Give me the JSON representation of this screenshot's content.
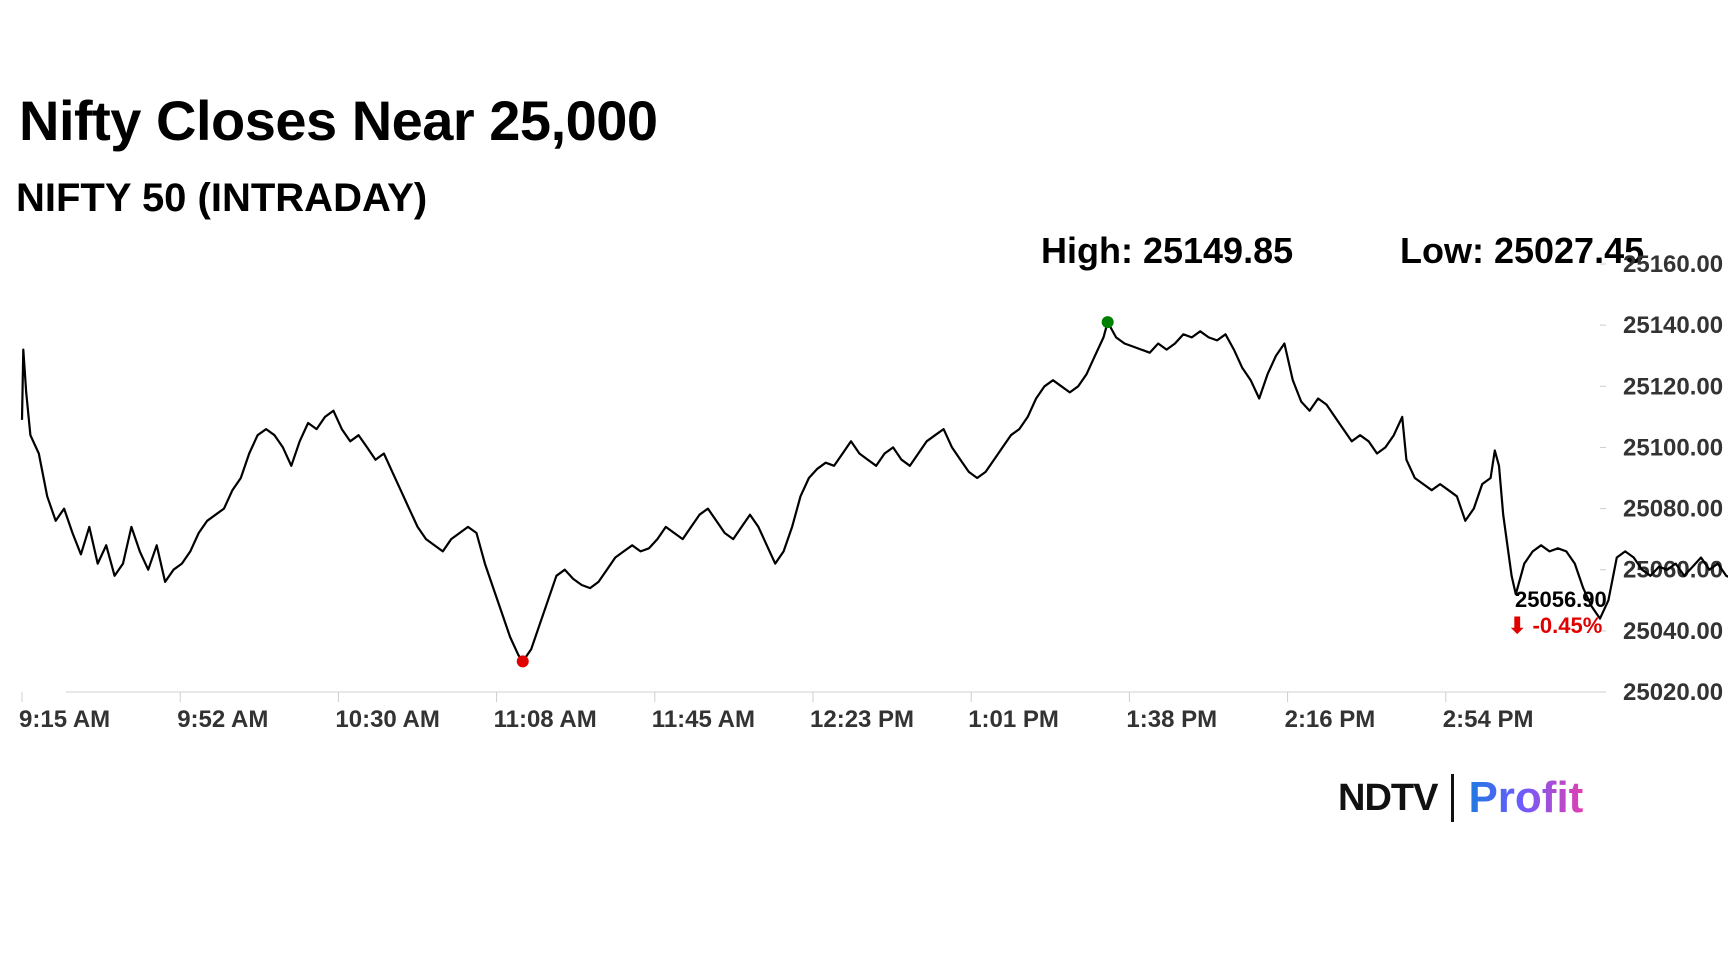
{
  "header": {
    "title": "Nifty Closes Near 25,000",
    "subtitle": "NIFTY 50 (INTRADAY)",
    "high_label": "High: 25149.85",
    "low_label": "Low: 25027.45"
  },
  "brand": {
    "left": "NDTV",
    "right": "Profit"
  },
  "colors": {
    "line": "#000000",
    "high_marker": "#008000",
    "low_marker": "#e00000",
    "last_marker": "#1a1aff",
    "change_text": "#e00000",
    "axis": "#e0e0e0"
  },
  "chart_data": {
    "type": "line",
    "x_ticks": [
      "9:15 AM",
      "9:52 AM",
      "10:30 AM",
      "11:08 AM",
      "11:45 AM",
      "12:23 PM",
      "1:01 PM",
      "1:38 PM",
      "2:16 PM",
      "2:54 PM"
    ],
    "y_ticks": [
      "25020.00",
      "25040.00",
      "25060.00",
      "25080.00",
      "25100.00",
      "25120.00",
      "25140.00",
      "25160.00"
    ],
    "ylim": [
      25020,
      25160
    ],
    "x_range_minutes": [
      0,
      375
    ],
    "series": [
      {
        "points": [
          [
            0,
            25109
          ],
          [
            0.3,
            25132
          ],
          [
            1,
            25118
          ],
          [
            2,
            25104
          ],
          [
            4,
            25098
          ],
          [
            6,
            25084
          ],
          [
            8,
            25076
          ],
          [
            10,
            25080
          ],
          [
            12,
            25072
          ],
          [
            14,
            25065
          ],
          [
            16,
            25074
          ],
          [
            18,
            25062
          ],
          [
            20,
            25068
          ],
          [
            22,
            25058
          ],
          [
            24,
            25062
          ],
          [
            26,
            25074
          ],
          [
            28,
            25066
          ],
          [
            30,
            25060
          ],
          [
            32,
            25068
          ],
          [
            34,
            25056
          ],
          [
            36,
            25060
          ],
          [
            38,
            25062
          ],
          [
            40,
            25066
          ],
          [
            42,
            25072
          ],
          [
            44,
            25076
          ],
          [
            46,
            25078
          ],
          [
            48,
            25080
          ],
          [
            50,
            25086
          ],
          [
            52,
            25090
          ],
          [
            54,
            25098
          ],
          [
            56,
            25104
          ],
          [
            58,
            25106
          ],
          [
            60,
            25104
          ],
          [
            62,
            25100
          ],
          [
            64,
            25094
          ],
          [
            66,
            25102
          ],
          [
            68,
            25108
          ],
          [
            70,
            25106
          ],
          [
            72,
            25110
          ],
          [
            74,
            25112
          ],
          [
            76,
            25106
          ],
          [
            78,
            25102
          ],
          [
            80,
            25104
          ],
          [
            82,
            25100
          ],
          [
            84,
            25096
          ],
          [
            86,
            25098
          ],
          [
            88,
            25092
          ],
          [
            90,
            25086
          ],
          [
            92,
            25080
          ],
          [
            94,
            25074
          ],
          [
            96,
            25070
          ],
          [
            98,
            25068
          ],
          [
            100,
            25066
          ],
          [
            102,
            25070
          ],
          [
            104,
            25072
          ],
          [
            106,
            25074
          ],
          [
            108,
            25072
          ],
          [
            110,
            25062
          ],
          [
            112,
            25054
          ],
          [
            114,
            25046
          ],
          [
            116,
            25038
          ],
          [
            118,
            25032
          ],
          [
            119,
            25030
          ],
          [
            121,
            25034
          ],
          [
            123,
            25042
          ],
          [
            125,
            25050
          ],
          [
            127,
            25058
          ],
          [
            129,
            25060
          ],
          [
            131,
            25057
          ],
          [
            133,
            25055
          ],
          [
            135,
            25054
          ],
          [
            137,
            25056
          ],
          [
            139,
            25060
          ],
          [
            141,
            25064
          ],
          [
            143,
            25066
          ],
          [
            145,
            25068
          ],
          [
            147,
            25066
          ],
          [
            149,
            25067
          ],
          [
            151,
            25070
          ],
          [
            153,
            25074
          ],
          [
            155,
            25072
          ],
          [
            157,
            25070
          ],
          [
            159,
            25074
          ],
          [
            161,
            25078
          ],
          [
            163,
            25080
          ],
          [
            165,
            25076
          ],
          [
            167,
            25072
          ],
          [
            169,
            25070
          ],
          [
            171,
            25074
          ],
          [
            173,
            25078
          ],
          [
            175,
            25074
          ],
          [
            177,
            25068
          ],
          [
            179,
            25062
          ],
          [
            181,
            25066
          ],
          [
            183,
            25074
          ],
          [
            185,
            25084
          ],
          [
            187,
            25090
          ],
          [
            189,
            25093
          ],
          [
            191,
            25095
          ],
          [
            193,
            25094
          ],
          [
            195,
            25098
          ],
          [
            197,
            25102
          ],
          [
            199,
            25098
          ],
          [
            201,
            25096
          ],
          [
            203,
            25094
          ],
          [
            205,
            25098
          ],
          [
            207,
            25100
          ],
          [
            209,
            25096
          ],
          [
            211,
            25094
          ],
          [
            213,
            25098
          ],
          [
            215,
            25102
          ],
          [
            217,
            25104
          ],
          [
            219,
            25106
          ],
          [
            221,
            25100
          ],
          [
            223,
            25096
          ],
          [
            225,
            25092
          ],
          [
            227,
            25090
          ],
          [
            229,
            25092
          ],
          [
            231,
            25096
          ],
          [
            233,
            25100
          ],
          [
            235,
            25104
          ],
          [
            237,
            25106
          ],
          [
            239,
            25110
          ],
          [
            241,
            25116
          ],
          [
            243,
            25120
          ],
          [
            245,
            25122
          ],
          [
            247,
            25120
          ],
          [
            249,
            25118
          ],
          [
            251,
            25120
          ],
          [
            253,
            25124
          ],
          [
            255,
            25130
          ],
          [
            257,
            25136
          ],
          [
            258,
            25141
          ],
          [
            260,
            25136
          ],
          [
            262,
            25134
          ],
          [
            264,
            25133
          ],
          [
            266,
            25132
          ],
          [
            268,
            25131
          ],
          [
            270,
            25134
          ],
          [
            272,
            25132
          ],
          [
            274,
            25134
          ],
          [
            276,
            25137
          ],
          [
            278,
            25136
          ],
          [
            280,
            25138
          ],
          [
            282,
            25136
          ],
          [
            284,
            25135
          ],
          [
            286,
            25137
          ],
          [
            288,
            25132
          ],
          [
            290,
            25126
          ],
          [
            292,
            25122
          ],
          [
            294,
            25116
          ],
          [
            296,
            25124
          ],
          [
            298,
            25130
          ],
          [
            300,
            25134
          ],
          [
            302,
            25122
          ],
          [
            304,
            25115
          ],
          [
            306,
            25112
          ],
          [
            308,
            25116
          ],
          [
            310,
            25114
          ],
          [
            312,
            25110
          ],
          [
            314,
            25106
          ],
          [
            316,
            25102
          ],
          [
            318,
            25104
          ],
          [
            320,
            25102
          ],
          [
            322,
            25098
          ],
          [
            324,
            25100
          ],
          [
            326,
            25104
          ],
          [
            328,
            25110
          ],
          [
            329,
            25096
          ],
          [
            331,
            25090
          ],
          [
            333,
            25088
          ],
          [
            335,
            25086
          ],
          [
            337,
            25088
          ],
          [
            339,
            25086
          ],
          [
            341,
            25084
          ],
          [
            343,
            25076
          ],
          [
            345,
            25080
          ],
          [
            347,
            25088
          ],
          [
            349,
            25090
          ],
          [
            350,
            25099
          ],
          [
            351,
            25094
          ],
          [
            352,
            25078
          ],
          [
            353,
            25068
          ],
          [
            354,
            25058
          ],
          [
            355,
            25052
          ],
          [
            357,
            25062
          ],
          [
            359,
            25066
          ],
          [
            361,
            25068
          ],
          [
            363,
            25066
          ],
          [
            365,
            25067
          ],
          [
            367,
            25066
          ],
          [
            369,
            25062
          ],
          [
            371,
            25054
          ],
          [
            373,
            25048
          ],
          [
            375,
            25044
          ],
          [
            377,
            25050
          ],
          [
            379,
            25064
          ],
          [
            381,
            25066
          ],
          [
            383,
            25064
          ],
          [
            385,
            25060
          ],
          [
            387,
            25058
          ],
          [
            389,
            25061
          ],
          [
            391,
            25060
          ],
          [
            393,
            25062
          ],
          [
            395,
            25058
          ],
          [
            397,
            25061
          ],
          [
            399,
            25064
          ],
          [
            401,
            25060
          ],
          [
            403,
            25062
          ],
          [
            405,
            25058
          ],
          [
            407,
            25056.9
          ]
        ]
      }
    ],
    "high_point": {
      "x": 258,
      "y": 25141
    },
    "low_point": {
      "x": 119,
      "y": 25030
    },
    "last_point": {
      "x": 407,
      "y": 25056.9
    },
    "last_value_label": "25056.90",
    "change_label": "⬇ -0.45%",
    "grid": false
  }
}
